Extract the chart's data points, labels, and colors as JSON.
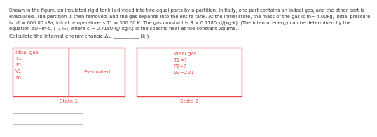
{
  "title_line1": "Shown in the figure, an insulated rigid tank is divided into two equal parts by a partition. Initially, one part contains an indeal gas, and the other part is",
  "title_line2": "evacuated. The partition is then removed, and the gas expands into the entire tank. At the initial state, the mass of the gas is m= 4.00kg, initial pressure",
  "title_line3": "is p1 = 600.00 kPa, initial temperature is T1 = 300.00 K. The gas constant is R = 0.7180 kJ/(kg·K). (The internal energy can be determined by the",
  "title_line4": "equation ΔU=m·cᵥ (T₂-T₁), where cᵥ= 0.7180 kJ/(kg·K) is the specific heat at the constant volume.)",
  "question_text": "Calculate the internal energy change ΔU __________ (kJ)",
  "box_color": "#e8474a",
  "bg_color": "#ffffff",
  "state1_left_label": "Ideal gas\nT1\nP1\nV1\nm",
  "state1_right_label": "Evacuated",
  "state2_label": "Ideal gas\nT2=?\nP2=?\nV2=2V1",
  "state1_caption": "State 1",
  "state2_caption": "State 2",
  "title_fontsize": 4.8,
  "label_fontsize": 5.2,
  "caption_fontsize": 5.2,
  "question_fontsize": 5.2,
  "text_color": "#333333",
  "lw": 1.0
}
